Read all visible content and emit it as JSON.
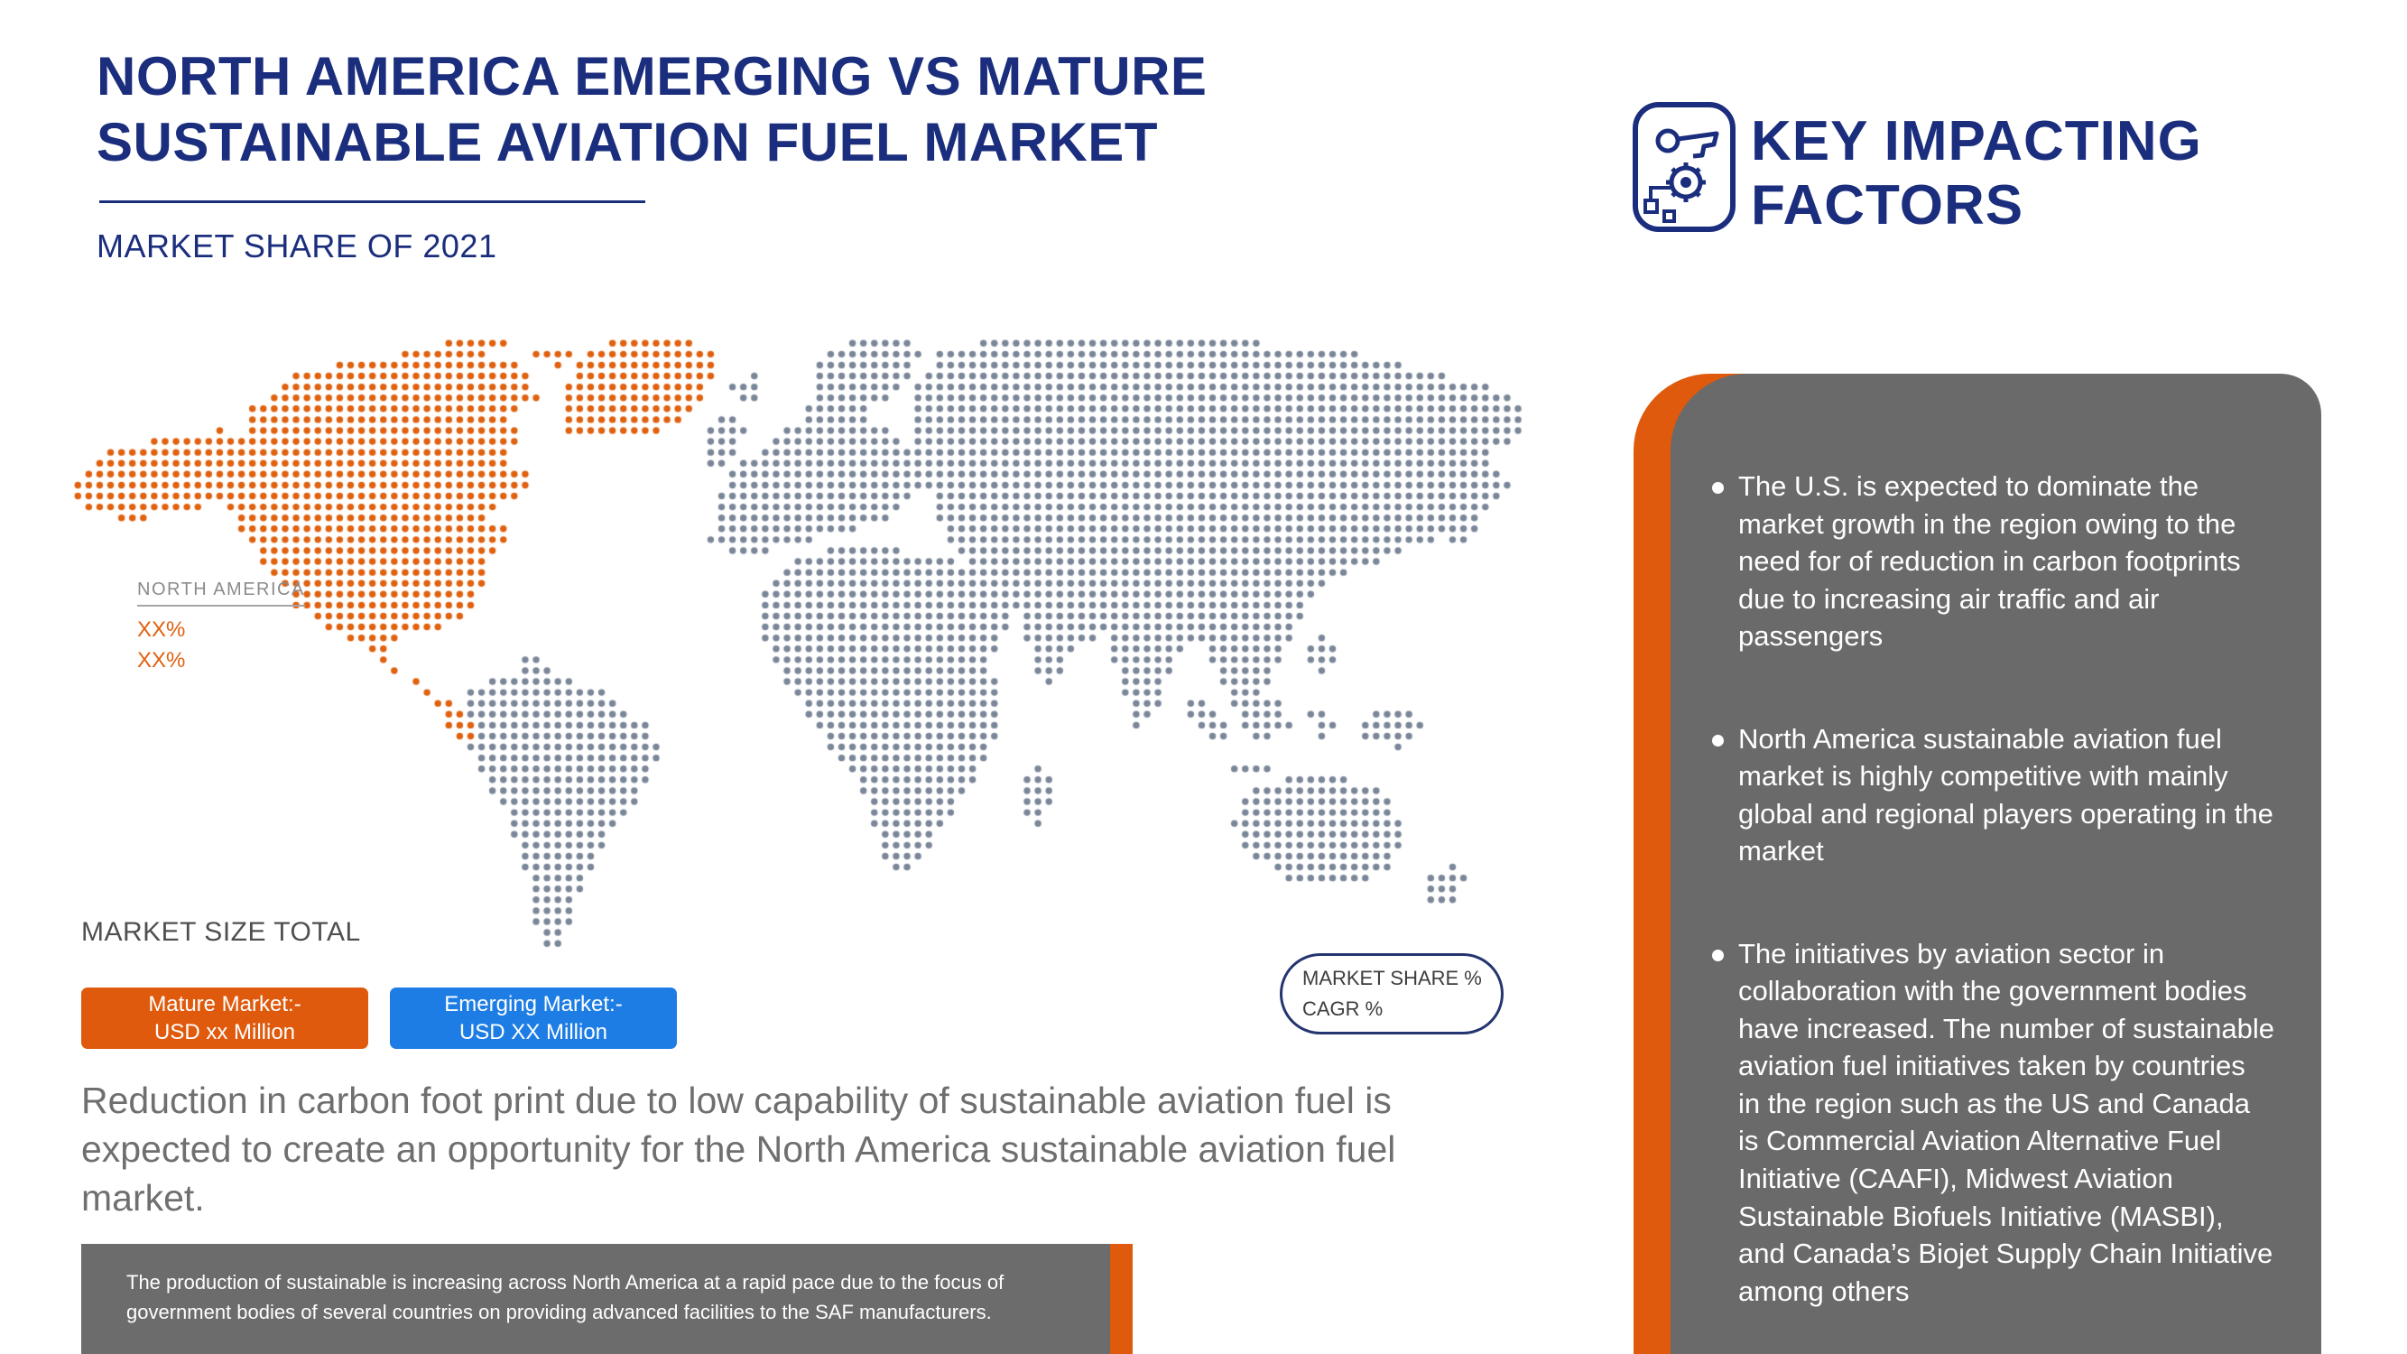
{
  "colors": {
    "navy": "#1b2d7d",
    "orange": "#df5a0c",
    "blue": "#1d7de4",
    "map_orange": "#e0610f",
    "map_gray": "#7b8799",
    "panel_gray": "#6a6a6a"
  },
  "header": {
    "title_line1": "NORTH AMERICA EMERGING VS MATURE",
    "title_line2": "SUSTAINABLE AVIATION FUEL MARKET",
    "subtitle": "MARKET SHARE OF 2021"
  },
  "map": {
    "region_label": "NORTH AMERICA",
    "share_value_1": "XX%",
    "share_value_2": "XX%"
  },
  "market_size": {
    "label": "MARKET SIZE TOTAL",
    "mature_line1": "Mature Market:-",
    "mature_line2": "USD xx Million",
    "emerging_line1": "Emerging Market:-",
    "emerging_line2": "USD XX Million"
  },
  "share_pill": {
    "line1": "MARKET SHARE %",
    "line2": "CAGR %"
  },
  "opportunity_text": "Reduction in carbon foot print due to low capability of sustainable aviation fuel is expected to create an opportunity for the North America sustainable aviation fuel market.",
  "production_note": "The production of sustainable is increasing across North America at a rapid pace due to the focus of government bodies of several countries on providing advanced facilities to the SAF manufacturers.",
  "key_factors": {
    "heading_line1": "KEY IMPACTING",
    "heading_line2": "FACTORS",
    "icon": "key-gear-icon",
    "bullets": [
      "The U.S. is expected to dominate the market growth in the region owing to the need for of reduction in carbon footprints due to increasing air traffic and air passengers",
      "North America sustainable aviation fuel market is highly competitive with mainly global and regional players operating in the market",
      "The initiatives by aviation sector in collaboration with the government bodies have increased. The number of sustainable aviation fuel initiatives taken by countries in the region such as the US and Canada is Commercial Aviation Alternative Fuel Initiative (CAAFI), Midwest Aviation Sustainable Biofuels Initiative (MASBI), and Canada’s Biojet Supply Chain Initiative among others"
    ]
  },
  "chart_data": {
    "type": "map",
    "title": "North America Emerging vs Mature Sustainable Aviation Fuel Market, Market Share of 2021",
    "regions": [
      {
        "name": "North America",
        "highlight": true,
        "color": "#e0610f",
        "market_share": "XX%",
        "cagr": "XX%"
      },
      {
        "name": "Rest of World",
        "highlight": false,
        "color": "#7b8799"
      }
    ],
    "legend": [
      {
        "label": "Mature Market:- USD xx Million",
        "color": "#df5a0c"
      },
      {
        "label": "Emerging Market:- USD XX Million",
        "color": "#1d7de4"
      }
    ]
  }
}
